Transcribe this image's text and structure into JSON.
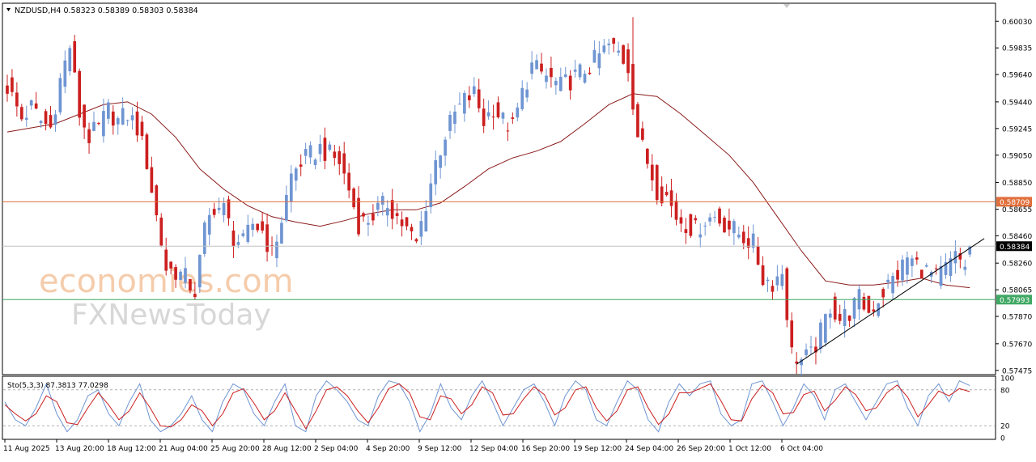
{
  "window": {
    "header_text": "NZDUSD,H4  0.58323 0.58389 0.58303 0.58384",
    "dropdown_icon": "triangle-down-icon",
    "collapse_icon": "triangle-down-icon"
  },
  "watermark": {
    "line1": "economies.com",
    "line2": "FXNewsToday"
  },
  "colors": {
    "bull": "#6f95d2",
    "bear": "#cc1f1f",
    "ma": "#8b1a1a",
    "resistance": "#e0703c",
    "support": "#3fa864",
    "current_price_badge": "#000000",
    "stoch_main": "#6f95d2",
    "stoch_signal": "#cc1f1f"
  },
  "chart_data": [
    {
      "type": "candlestick",
      "symbol": "NZDUSD",
      "timeframe": "H4",
      "ohlc": {
        "open": 0.58323,
        "high": 0.58389,
        "low": 0.58303,
        "close": 0.58384
      },
      "ylim": [
        0.5745,
        0.6015
      ],
      "y_ticks": [
        "0.60030",
        "0.59835",
        "0.59640",
        "0.59440",
        "0.59245",
        "0.59050",
        "0.58850",
        "0.58655",
        "0.58460",
        "0.58260",
        "0.58065",
        "0.57870",
        "0.57670",
        "0.57475"
      ],
      "x_ticks": [
        "11 Aug 2025",
        "13 Aug 20:00",
        "18 Aug 12:00",
        "21 Aug 04:00",
        "25 Aug 20:00",
        "28 Aug 12:00",
        "2 Sep 04:00",
        "4 Sep 20:00",
        "9 Sep 12:00",
        "12 Sep 04:00",
        "16 Sep 20:00",
        "19 Sep 12:00",
        "24 Sep 04:00",
        "26 Sep 20:00",
        "1 Oct 12:00",
        "6 Oct 04:00"
      ],
      "close_path": [
        [
          0,
          0.5955
        ],
        [
          3,
          0.5932
        ],
        [
          5,
          0.594
        ],
        [
          7,
          0.593
        ],
        [
          9,
          0.5925
        ],
        [
          11,
          0.596
        ],
        [
          13,
          0.5985
        ],
        [
          15,
          0.5935
        ],
        [
          17,
          0.5918
        ],
        [
          19,
          0.5925
        ],
        [
          21,
          0.5938
        ],
        [
          23,
          0.593
        ],
        [
          25,
          0.5935
        ],
        [
          27,
          0.5925
        ],
        [
          29,
          0.59
        ],
        [
          31,
          0.586
        ],
        [
          33,
          0.5822
        ],
        [
          35,
          0.582
        ],
        [
          37,
          0.5815
        ],
        [
          39,
          0.5805
        ],
        [
          41,
          0.585
        ],
        [
          43,
          0.5868
        ],
        [
          45,
          0.5865
        ],
        [
          47,
          0.5845
        ],
        [
          49,
          0.584
        ],
        [
          51,
          0.5855
        ],
        [
          53,
          0.585
        ],
        [
          55,
          0.5832
        ],
        [
          57,
          0.5858
        ],
        [
          59,
          0.589
        ],
        [
          61,
          0.59
        ],
        [
          63,
          0.5905
        ],
        [
          65,
          0.591
        ],
        [
          67,
          0.5905
        ],
        [
          69,
          0.59
        ],
        [
          71,
          0.588
        ],
        [
          73,
          0.5855
        ],
        [
          75,
          0.5858
        ],
        [
          77,
          0.5865
        ],
        [
          79,
          0.587
        ],
        [
          81,
          0.586
        ],
        [
          83,
          0.585
        ],
        [
          85,
          0.584
        ],
        [
          87,
          0.587
        ],
        [
          89,
          0.59
        ],
        [
          91,
          0.592
        ],
        [
          93,
          0.5935
        ],
        [
          95,
          0.5945
        ],
        [
          97,
          0.595
        ],
        [
          99,
          0.593
        ],
        [
          101,
          0.594
        ],
        [
          103,
          0.593
        ],
        [
          105,
          0.5925
        ],
        [
          107,
          0.595
        ],
        [
          109,
          0.597
        ],
        [
          111,
          0.5965
        ],
        [
          113,
          0.596
        ],
        [
          115,
          0.5955
        ],
        [
          117,
          0.596
        ],
        [
          119,
          0.5965
        ],
        [
          121,
          0.597
        ],
        [
          123,
          0.5978
        ],
        [
          125,
          0.5985
        ],
        [
          127,
          0.598
        ],
        [
          129,
          0.597
        ],
        [
          131,
          0.592
        ],
        [
          133,
          0.59
        ],
        [
          135,
          0.588
        ],
        [
          137,
          0.5875
        ],
        [
          139,
          0.586
        ],
        [
          141,
          0.5855
        ],
        [
          143,
          0.585
        ],
        [
          145,
          0.5858
        ],
        [
          147,
          0.586
        ],
        [
          149,
          0.5855
        ],
        [
          151,
          0.585
        ],
        [
          153,
          0.5845
        ],
        [
          155,
          0.584
        ],
        [
          157,
          0.5815
        ],
        [
          159,
          0.5812
        ],
        [
          161,
          0.582
        ],
        [
          163,
          0.576
        ],
        [
          165,
          0.5755
        ],
        [
          167,
          0.5758
        ],
        [
          169,
          0.5775
        ],
        [
          171,
          0.5795
        ],
        [
          173,
          0.5785
        ],
        [
          175,
          0.579
        ],
        [
          177,
          0.58
        ],
        [
          179,
          0.579
        ],
        [
          181,
          0.58
        ],
        [
          183,
          0.581
        ],
        [
          185,
          0.5818
        ],
        [
          187,
          0.583
        ],
        [
          189,
          0.5825
        ],
        [
          191,
          0.582
        ],
        [
          193,
          0.5815
        ],
        [
          195,
          0.5822
        ],
        [
          197,
          0.583
        ],
        [
          199,
          0.5825
        ],
        [
          200,
          0.58384
        ]
      ],
      "moving_average": [
        [
          0,
          0.5922
        ],
        [
          10,
          0.5928
        ],
        [
          20,
          0.5942
        ],
        [
          25,
          0.5944
        ],
        [
          30,
          0.5935
        ],
        [
          35,
          0.5918
        ],
        [
          40,
          0.5895
        ],
        [
          45,
          0.588
        ],
        [
          50,
          0.5868
        ],
        [
          55,
          0.586
        ],
        [
          60,
          0.5856
        ],
        [
          65,
          0.5853
        ],
        [
          70,
          0.5857
        ],
        [
          75,
          0.5862
        ],
        [
          80,
          0.5865
        ],
        [
          85,
          0.5865
        ],
        [
          90,
          0.587
        ],
        [
          95,
          0.5882
        ],
        [
          100,
          0.5895
        ],
        [
          105,
          0.5903
        ],
        [
          110,
          0.5908
        ],
        [
          115,
          0.5915
        ],
        [
          120,
          0.5928
        ],
        [
          125,
          0.5942
        ],
        [
          130,
          0.595
        ],
        [
          135,
          0.5948
        ],
        [
          140,
          0.5935
        ],
        [
          145,
          0.592
        ],
        [
          150,
          0.5905
        ],
        [
          155,
          0.5885
        ],
        [
          160,
          0.586
        ],
        [
          165,
          0.5835
        ],
        [
          170,
          0.5813
        ],
        [
          175,
          0.581
        ],
        [
          180,
          0.581
        ],
        [
          185,
          0.5812
        ],
        [
          190,
          0.5815
        ],
        [
          195,
          0.581
        ],
        [
          200,
          0.5808
        ]
      ],
      "resistance_level": {
        "value": 0.58709,
        "label": "0.58709"
      },
      "support_level": {
        "value": 0.57993,
        "label": "0.57993"
      },
      "current_price": {
        "value": 0.58384,
        "label": "0.58384"
      },
      "trendline": [
        [
          164,
          0.5752
        ],
        [
          203,
          0.5844
        ]
      ]
    },
    {
      "type": "line",
      "indicator": "Sto(5,3,3)",
      "label": "Sto(5,3,3) 87.3813 77.0298",
      "ylim": [
        0,
        100
      ],
      "y_ticks": [
        "100",
        "80",
        "20",
        "0"
      ],
      "levels": [
        80,
        20
      ],
      "series": [
        {
          "name": "main",
          "values": [
            60,
            30,
            20,
            50,
            90,
            40,
            10,
            30,
            70,
            80,
            40,
            20,
            60,
            90,
            30,
            10,
            20,
            40,
            70,
            30,
            10,
            60,
            90,
            80,
            40,
            20,
            60,
            90,
            20,
            10,
            70,
            95,
            80,
            60,
            30,
            20,
            70,
            95,
            90,
            60,
            10,
            40,
            90,
            50,
            30,
            70,
            95,
            60,
            20,
            50,
            80,
            90,
            60,
            20,
            70,
            95,
            80,
            30,
            20,
            60,
            95,
            80,
            30,
            10,
            60,
            90,
            70,
            90,
            95,
            40,
            20,
            30,
            90,
            95,
            60,
            20,
            50,
            90,
            70,
            30,
            80,
            90,
            60,
            30,
            60,
            90,
            95,
            50,
            20,
            70,
            90,
            60,
            95,
            87
          ]
        },
        {
          "name": "signal",
          "values": [
            55,
            40,
            28,
            40,
            70,
            60,
            25,
            22,
            50,
            75,
            55,
            30,
            45,
            75,
            50,
            20,
            18,
            30,
            55,
            45,
            20,
            40,
            75,
            82,
            58,
            30,
            45,
            75,
            45,
            15,
            45,
            80,
            85,
            70,
            45,
            25,
            50,
            82,
            90,
            75,
            35,
            30,
            70,
            65,
            40,
            55,
            85,
            75,
            38,
            40,
            65,
            85,
            72,
            38,
            50,
            80,
            85,
            50,
            28,
            45,
            80,
            85,
            50,
            22,
            40,
            75,
            75,
            82,
            90,
            62,
            30,
            28,
            65,
            88,
            75,
            40,
            42,
            72,
            78,
            45,
            62,
            85,
            72,
            45,
            50,
            75,
            88,
            68,
            35,
            55,
            78,
            70,
            82,
            77
          ]
        }
      ]
    }
  ]
}
